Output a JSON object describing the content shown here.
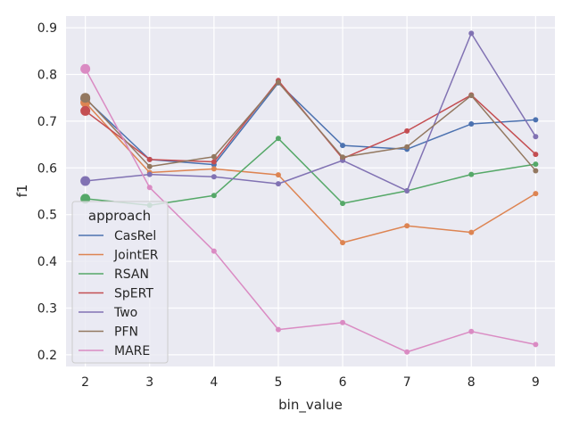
{
  "chart_data": {
    "type": "line",
    "xlabel": "bin_value",
    "ylabel": "f1",
    "x": [
      2,
      3,
      4,
      5,
      6,
      7,
      8,
      9
    ],
    "xlim": [
      1.7,
      9.3
    ],
    "ylim": [
      0.175,
      0.925
    ],
    "xticks": [
      "2",
      "3",
      "4",
      "5",
      "6",
      "7",
      "8",
      "9"
    ],
    "yticks": [
      "0.2",
      "0.3",
      "0.4",
      "0.5",
      "0.6",
      "0.7",
      "0.8",
      "0.9"
    ],
    "grid": true,
    "legend": {
      "title": "approach",
      "placement": "center-left"
    },
    "series": [
      {
        "name": "CasRel",
        "color": "#4c72b0",
        "values": [
          0.748,
          0.618,
          0.607,
          0.782,
          0.648,
          0.64,
          0.694,
          0.703
        ]
      },
      {
        "name": "JointER",
        "color": "#dd8452",
        "values": [
          0.74,
          0.59,
          0.598,
          0.585,
          0.44,
          0.476,
          0.462,
          0.545
        ]
      },
      {
        "name": "RSAN",
        "color": "#55a868",
        "values": [
          0.534,
          0.52,
          0.541,
          0.663,
          0.524,
          0.551,
          0.586,
          0.608
        ]
      },
      {
        "name": "SpERT",
        "color": "#c44e52",
        "values": [
          0.722,
          0.618,
          0.613,
          0.787,
          0.62,
          0.679,
          0.756,
          0.629
        ]
      },
      {
        "name": "Two",
        "color": "#8172b3",
        "values": [
          0.572,
          0.586,
          0.581,
          0.566,
          0.616,
          0.551,
          0.888,
          0.667
        ]
      },
      {
        "name": "PFN",
        "color": "#937860",
        "values": [
          0.75,
          0.603,
          0.624,
          0.783,
          0.623,
          0.645,
          0.755,
          0.594
        ]
      },
      {
        "name": "MARE",
        "color": "#da8bc3",
        "values": [
          0.812,
          0.558,
          0.422,
          0.254,
          0.269,
          0.206,
          0.25,
          0.222
        ]
      }
    ]
  }
}
